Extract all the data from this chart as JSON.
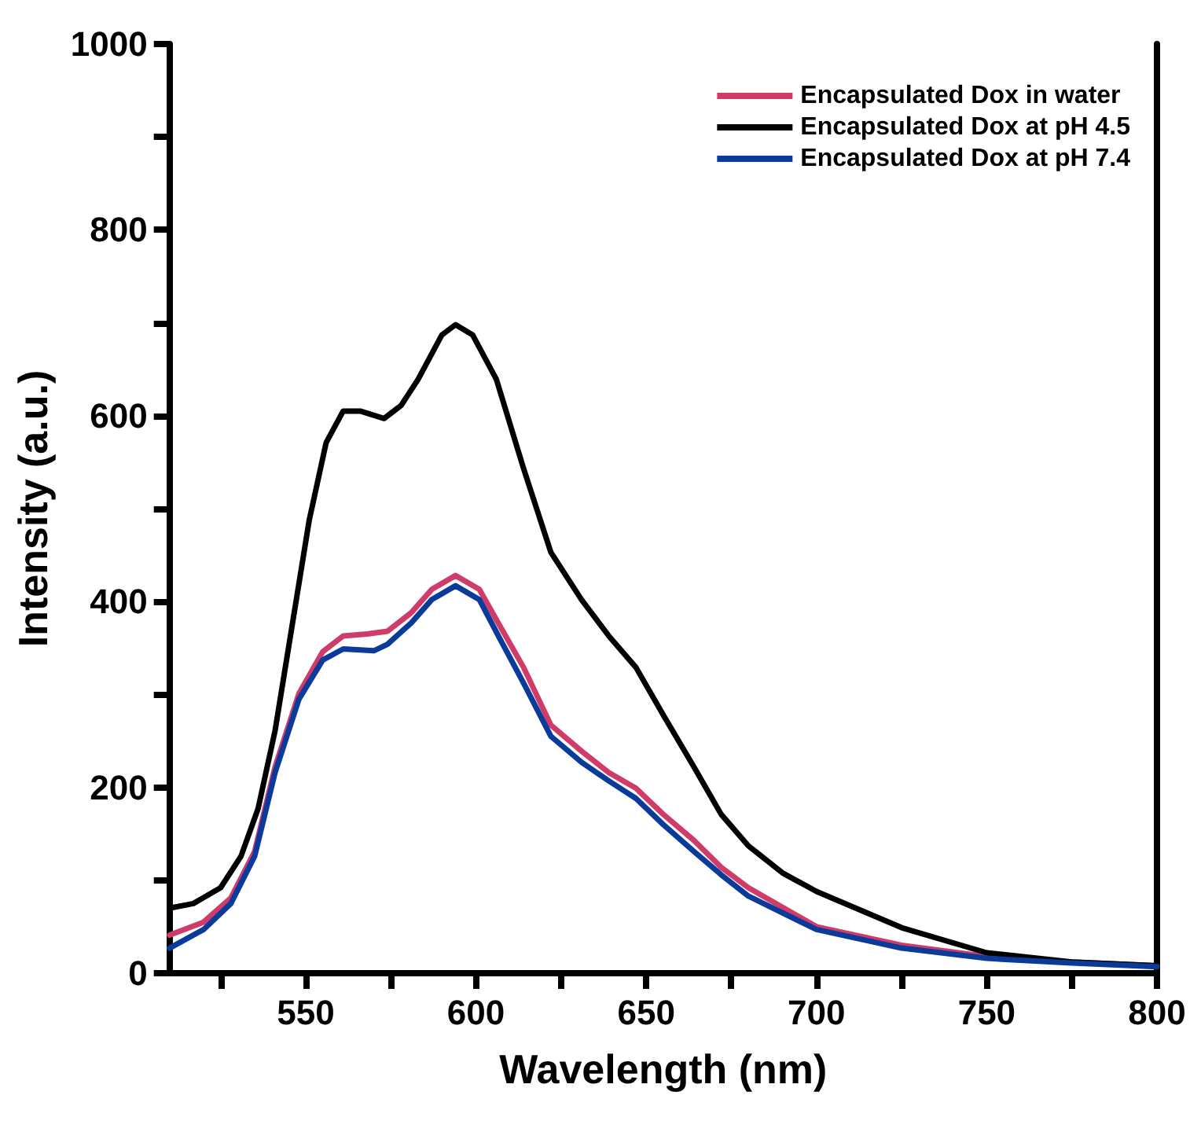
{
  "chart_data": {
    "type": "line",
    "xlabel": "Wavelength (nm)",
    "ylabel": "Intensity (a.u.)",
    "xlim": [
      510,
      800
    ],
    "xticks": [
      {
        "value": 525,
        "label": null
      },
      550,
      {
        "value": 575,
        "label": null
      },
      600,
      {
        "value": 625,
        "label": null
      },
      650,
      {
        "value": 675,
        "label": null
      },
      700,
      {
        "value": 725,
        "label": null
      },
      750,
      {
        "value": 775,
        "label": null
      },
      800
    ],
    "ylim": [
      0,
      1000
    ],
    "yticks": [
      0,
      {
        "value": 100,
        "label": null
      },
      200,
      {
        "value": 300,
        "label": null
      },
      400,
      {
        "value": 500,
        "label": null
      },
      600,
      {
        "value": 700,
        "label": null
      },
      800,
      {
        "value": 900,
        "label": null
      },
      1000
    ],
    "grid": false,
    "legend": "top right",
    "marker": "none",
    "line_style": "solid",
    "series": [
      {
        "name": "Encapsulated Dox in water",
        "color": "#d03c6a",
        "x": [
          510,
          520,
          528,
          535,
          541,
          548,
          555,
          561,
          568,
          574,
          581,
          587,
          594,
          601,
          607,
          614,
          622,
          631,
          639,
          647,
          655,
          664,
          672,
          680,
          700,
          725,
          750,
          775,
          800
        ],
        "values": [
          41,
          55,
          81,
          131,
          222,
          301,
          346,
          363,
          365,
          368,
          388,
          413,
          428,
          413,
          374,
          329,
          267,
          239,
          216,
          199,
          171,
          143,
          114,
          92,
          50,
          30,
          18,
          12,
          8
        ]
      },
      {
        "name": "Encapsulated Dox at pH 4.5",
        "color": "#000000",
        "x": [
          510,
          517,
          525,
          531,
          536,
          541,
          546,
          551,
          556,
          561,
          566,
          573,
          578,
          583,
          590,
          594,
          599,
          606,
          614,
          622,
          631,
          639,
          647,
          655,
          664,
          672,
          680,
          690,
          700,
          725,
          750,
          775,
          800
        ],
        "values": [
          70,
          75,
          92,
          126,
          177,
          261,
          374,
          487,
          571,
          605,
          605,
          597,
          611,
          639,
          687,
          698,
          687,
          639,
          543,
          453,
          402,
          363,
          329,
          278,
          222,
          171,
          137,
          108,
          88,
          49,
          22,
          12,
          8
        ]
      },
      {
        "name": "Encapsulated Dox at pH 7.4",
        "color": "#0a3a9a",
        "x": [
          510,
          520,
          528,
          535,
          541,
          548,
          555,
          561,
          570,
          574,
          581,
          587,
          594,
          601,
          607,
          614,
          622,
          631,
          639,
          647,
          655,
          664,
          672,
          680,
          700,
          725,
          750,
          775,
          800
        ],
        "values": [
          27,
          47,
          75,
          126,
          216,
          295,
          337,
          349,
          347,
          354,
          377,
          402,
          417,
          402,
          360,
          312,
          255,
          227,
          207,
          188,
          160,
          131,
          106,
          83,
          47,
          27,
          16,
          11,
          7
        ]
      }
    ]
  }
}
